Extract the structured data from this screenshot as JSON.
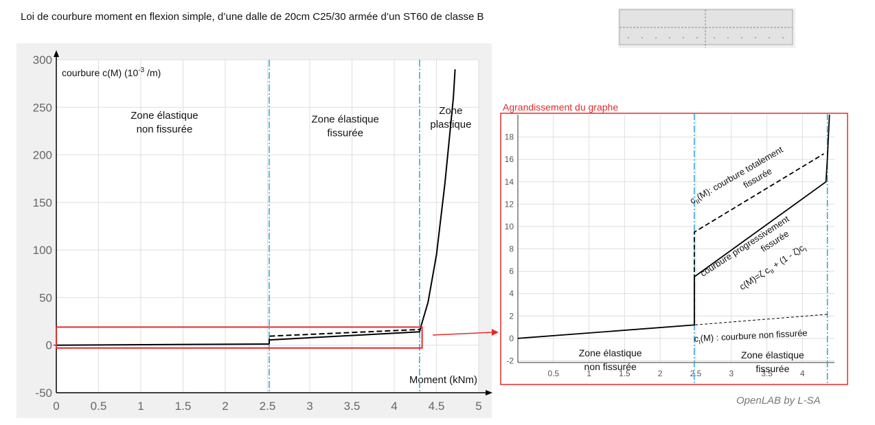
{
  "header": {
    "title": "Loi de courbure moment en flexion simple,  d’une dalle de 20cm C25/30 armée d’un ST60 de classe B"
  },
  "credit": "OpenLAB by L-SA",
  "colors": {
    "plot_bg": "#ffffff",
    "figure_bg": "#f0f0f0",
    "grid": "#dedede",
    "divider": "#2aa3d6",
    "highlight": "#e52a2a",
    "curve": "#000000"
  },
  "chart_data": [
    {
      "id": "main",
      "type": "line",
      "title": "",
      "xlabel": "Moment (kNm)",
      "ylabel": "courbure c(M) (10-3 /m)",
      "ylabel_parts": {
        "base": "courbure c(M) (10",
        "sup": "-3",
        "tail": " /m)"
      },
      "xlim": [
        0,
        5
      ],
      "ylim": [
        -50,
        300
      ],
      "xticks": [
        0,
        0.5,
        1,
        1.5,
        2,
        2.5,
        3,
        3.5,
        4,
        4.5,
        5
      ],
      "xtick_labels": [
        "0",
        "0.5",
        "1",
        "1.5",
        "2",
        "2.5",
        "3",
        "3.5",
        "4",
        "4.5",
        "5"
      ],
      "yticks": [
        -50,
        0,
        50,
        100,
        150,
        200,
        250,
        300
      ],
      "ytick_labels": [
        "-50",
        "0",
        "50",
        "100",
        "150",
        "200",
        "250",
        "300"
      ],
      "grid": true,
      "vlines": [
        2.52,
        4.3
      ],
      "zones": [
        {
          "label_lines": [
            "Zone élastique",
            "non fissurée"
          ],
          "x": 1.28,
          "y": 238
        },
        {
          "label_lines": [
            "Zone élastique",
            "fissurée"
          ],
          "x": 3.42,
          "y": 234
        },
        {
          "label_lines": [
            "Zone",
            "plastique"
          ],
          "x": 4.67,
          "y": 243
        }
      ],
      "zoom_box": {
        "x": [
          0,
          4.33
        ],
        "y": [
          -3,
          19
        ]
      },
      "series": [
        {
          "name": "courbure non fissurée c_I(M)",
          "style": "solid",
          "x": [
            0,
            2.52
          ],
          "y": [
            0,
            1.2
          ]
        },
        {
          "name": "courbure totalement fissurée c_II(M)",
          "style": "dashed",
          "x": [
            2.52,
            2.52,
            4.3
          ],
          "y": [
            1.2,
            9.5,
            16.5
          ]
        },
        {
          "name": "courbure progressivement fissurée c(M)",
          "style": "solid",
          "x": [
            2.52,
            2.52,
            4.3,
            4.32,
            4.4,
            4.5,
            4.6,
            4.7,
            4.72
          ],
          "y": [
            1.2,
            5.5,
            14,
            21,
            45,
            95,
            170,
            260,
            290
          ]
        }
      ]
    },
    {
      "id": "zoom",
      "type": "line",
      "title": "Agrandissement du graphe",
      "xlabel": "",
      "ylabel": "",
      "xlim": [
        0,
        4.45
      ],
      "ylim": [
        -4,
        20
      ],
      "xticks": [
        0.5,
        1,
        1.5,
        2,
        2.5,
        3,
        3.5,
        4
      ],
      "xtick_labels": [
        "0.5",
        "1",
        "1.5",
        "2",
        "2.5",
        "3",
        "3.5",
        "4"
      ],
      "yticks": [
        -2,
        0,
        2,
        4,
        6,
        8,
        10,
        12,
        14,
        16,
        18
      ],
      "ytick_labels": [
        "-2",
        "0",
        "2",
        "4",
        "6",
        "8",
        "10",
        "12",
        "14",
        "16",
        "18"
      ],
      "grid": true,
      "vlines": [
        2.48,
        4.35
      ],
      "zones": [
        {
          "label_lines": [
            "Zone élastique",
            "non fissurée"
          ],
          "x": 1.3,
          "y": -1.6
        },
        {
          "label_lines": [
            "Zone élastique",
            "fissurée"
          ],
          "x": 3.58,
          "y": -1.8
        }
      ],
      "annotations": [
        {
          "text": "c",
          "sub": "II",
          "tail": "(M): courbure totalement",
          "x": 2.45,
          "y": 12.0,
          "angle": -30
        },
        {
          "text": "fissurée",
          "x": 3.2,
          "y": 13.4,
          "angle": -30
        },
        {
          "text": "courbure progressivement",
          "x": 2.6,
          "y": 5.5,
          "angle": -33
        },
        {
          "text": "fissurée",
          "x": 3.45,
          "y": 7.7,
          "angle": -33
        },
        {
          "text": "c(M)=ζ c",
          "sub": "II",
          "tail": " + (1 - ζ)c",
          "sub2": "I",
          "x": 3.15,
          "y": 4.3,
          "angle": -33
        },
        {
          "text": "c",
          "sub": "I",
          "tail": "(M) : courbure non fissurée",
          "x": 2.48,
          "y": -0.3,
          "angle": -3
        }
      ],
      "series": [
        {
          "name": "courbure non fissurée c_I(M)",
          "style": "dashed-thin",
          "x": [
            0,
            2.48,
            4.35
          ],
          "y": [
            0,
            1.2,
            2.15
          ]
        },
        {
          "name": "courbure totalement fissurée c_II(M)",
          "style": "dashed",
          "x": [
            2.48,
            2.48,
            4.3
          ],
          "y": [
            1.2,
            9.5,
            16.5
          ]
        },
        {
          "name": "courbure progressivement fissurée c(M)",
          "style": "solid",
          "x": [
            0,
            2.48,
            2.48,
            4.33,
            4.35,
            4.38
          ],
          "y": [
            0,
            1.2,
            5.5,
            14,
            16,
            20
          ]
        }
      ]
    }
  ]
}
